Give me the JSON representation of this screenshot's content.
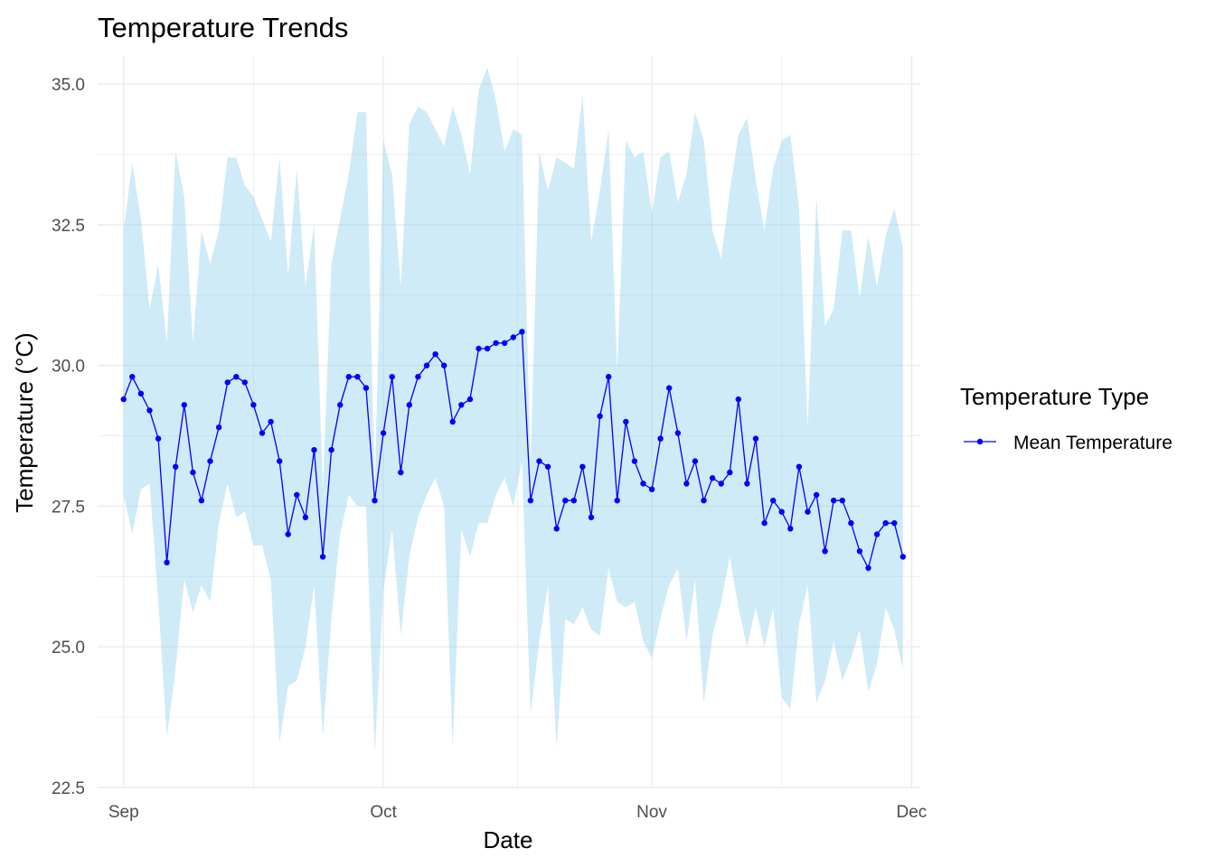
{
  "chart_data": {
    "type": "line",
    "title": "Temperature Trends",
    "xlabel": "Date",
    "ylabel": "Temperature (°C)",
    "x_tick_labels": [
      {
        "date": "2023-09-01",
        "label": "Sep"
      },
      {
        "date": "2023-10-01",
        "label": "Oct"
      },
      {
        "date": "2023-11-01",
        "label": "Nov"
      },
      {
        "date": "2023-12-01",
        "label": "Dec"
      }
    ],
    "y_ticks": [
      22.5,
      25.0,
      27.5,
      30.0,
      32.5,
      35.0
    ],
    "y_tick_labels": [
      "22.5",
      "25.0",
      "27.5",
      "30.0",
      "32.5",
      "35.0"
    ],
    "ylim": [
      22.5,
      35.5
    ],
    "xlim": [
      "2023-08-29",
      "2023-12-02"
    ],
    "grid": true,
    "legend": {
      "title": "Temperature Type",
      "position": "right",
      "entries": [
        "Mean Temperature"
      ]
    },
    "colors": {
      "line": "#0000ff",
      "ribbon": "#87ceeb",
      "grid": "#ebebeb"
    },
    "x": [
      "2023-09-01",
      "2023-09-02",
      "2023-09-03",
      "2023-09-04",
      "2023-09-05",
      "2023-09-06",
      "2023-09-07",
      "2023-09-08",
      "2023-09-09",
      "2023-09-10",
      "2023-09-11",
      "2023-09-12",
      "2023-09-13",
      "2023-09-14",
      "2023-09-15",
      "2023-09-16",
      "2023-09-17",
      "2023-09-18",
      "2023-09-19",
      "2023-09-20",
      "2023-09-21",
      "2023-09-22",
      "2023-09-23",
      "2023-09-24",
      "2023-09-25",
      "2023-09-26",
      "2023-09-27",
      "2023-09-28",
      "2023-09-29",
      "2023-09-30",
      "2023-10-01",
      "2023-10-02",
      "2023-10-03",
      "2023-10-04",
      "2023-10-05",
      "2023-10-06",
      "2023-10-07",
      "2023-10-08",
      "2023-10-09",
      "2023-10-10",
      "2023-10-11",
      "2023-10-12",
      "2023-10-13",
      "2023-10-14",
      "2023-10-15",
      "2023-10-16",
      "2023-10-17",
      "2023-10-18",
      "2023-10-19",
      "2023-10-20",
      "2023-10-21",
      "2023-10-22",
      "2023-10-23",
      "2023-10-24",
      "2023-10-25",
      "2023-10-26",
      "2023-10-27",
      "2023-10-28",
      "2023-10-29",
      "2023-10-30",
      "2023-10-31",
      "2023-11-01",
      "2023-11-02",
      "2023-11-03",
      "2023-11-04",
      "2023-11-05",
      "2023-11-06",
      "2023-11-07",
      "2023-11-08",
      "2023-11-09",
      "2023-11-10",
      "2023-11-11",
      "2023-11-12",
      "2023-11-13",
      "2023-11-14",
      "2023-11-15",
      "2023-11-16",
      "2023-11-17",
      "2023-11-18",
      "2023-11-19",
      "2023-11-20",
      "2023-11-21",
      "2023-11-22",
      "2023-11-23",
      "2023-11-24",
      "2023-11-25",
      "2023-11-26",
      "2023-11-27",
      "2023-11-28",
      "2023-11-29",
      "2023-11-30"
    ],
    "series": [
      {
        "name": "Mean Temperature",
        "values": [
          29.4,
          29.8,
          29.5,
          29.2,
          28.7,
          26.5,
          28.2,
          29.3,
          28.1,
          27.6,
          28.3,
          28.9,
          29.7,
          29.8,
          29.7,
          29.3,
          28.8,
          29.0,
          28.3,
          27.0,
          27.7,
          27.3,
          28.5,
          26.6,
          28.5,
          29.3,
          29.8,
          29.8,
          29.6,
          27.6,
          28.8,
          29.8,
          28.1,
          29.3,
          29.8,
          30.0,
          30.2,
          30.0,
          29.0,
          29.3,
          29.4,
          30.3,
          30.3,
          30.4,
          30.4,
          30.5,
          30.6,
          27.6,
          28.3,
          28.2,
          27.1,
          27.6,
          27.6,
          28.2,
          27.3,
          29.1,
          29.8,
          27.6,
          29.0,
          28.3,
          27.9,
          27.8,
          28.7,
          29.6,
          28.8,
          27.9,
          28.3,
          27.6,
          28.0,
          27.9,
          28.1,
          29.4,
          27.9,
          28.7,
          27.2,
          27.6,
          27.4,
          27.1,
          28.2,
          27.4,
          27.7,
          26.7,
          27.6,
          27.6,
          27.2,
          26.7,
          26.4,
          27.0,
          27.2,
          27.2,
          26.6
        ]
      }
    ],
    "ribbon": {
      "upper": [
        32.4,
        33.6,
        32.6,
        31.0,
        31.8,
        30.4,
        33.8,
        33.0,
        30.4,
        32.4,
        31.8,
        32.4,
        33.7,
        33.7,
        33.2,
        33.0,
        32.6,
        32.2,
        33.7,
        31.6,
        33.5,
        31.4,
        32.5,
        27.8,
        31.8,
        32.6,
        33.4,
        34.5,
        34.5,
        27.8,
        34.0,
        33.4,
        31.4,
        34.3,
        34.6,
        34.5,
        34.2,
        33.9,
        34.6,
        34.1,
        33.4,
        34.9,
        35.3,
        34.7,
        33.8,
        34.2,
        34.1,
        28.2,
        33.8,
        33.1,
        33.7,
        33.6,
        33.5,
        34.8,
        32.2,
        33.1,
        34.2,
        29.9,
        34.0,
        33.7,
        33.8,
        32.7,
        33.7,
        33.8,
        32.9,
        33.4,
        34.5,
        34.0,
        32.4,
        31.9,
        33.1,
        34.1,
        34.4,
        33.3,
        32.4,
        33.5,
        34.0,
        34.1,
        32.8,
        28.9,
        33.0,
        30.7,
        31.0,
        32.4,
        32.4,
        31.2,
        32.3,
        31.4,
        32.3,
        32.8,
        32.1
      ],
      "lower": [
        27.7,
        27.0,
        27.8,
        27.9,
        25.8,
        23.4,
        24.6,
        26.2,
        25.6,
        26.1,
        25.8,
        27.2,
        27.9,
        27.3,
        27.4,
        26.8,
        26.8,
        26.2,
        23.3,
        24.3,
        24.4,
        25.0,
        26.1,
        23.4,
        25.5,
        27.0,
        27.7,
        27.5,
        27.5,
        23.1,
        26.0,
        27.1,
        25.2,
        26.6,
        27.3,
        27.7,
        28.0,
        27.5,
        23.2,
        27.1,
        26.6,
        27.2,
        27.2,
        27.7,
        28.0,
        27.5,
        28.3,
        23.8,
        25.1,
        26.1,
        23.2,
        25.5,
        25.4,
        25.7,
        25.3,
        25.2,
        26.4,
        25.8,
        25.7,
        25.8,
        25.1,
        24.8,
        25.5,
        26.1,
        26.4,
        25.1,
        26.2,
        24.0,
        25.2,
        25.8,
        26.6,
        25.7,
        25.0,
        25.7,
        25.0,
        25.7,
        24.1,
        23.9,
        25.4,
        26.1,
        24.0,
        24.4,
        25.1,
        24.4,
        24.8,
        25.3,
        24.2,
        24.7,
        25.7,
        25.3,
        24.6
      ]
    }
  }
}
